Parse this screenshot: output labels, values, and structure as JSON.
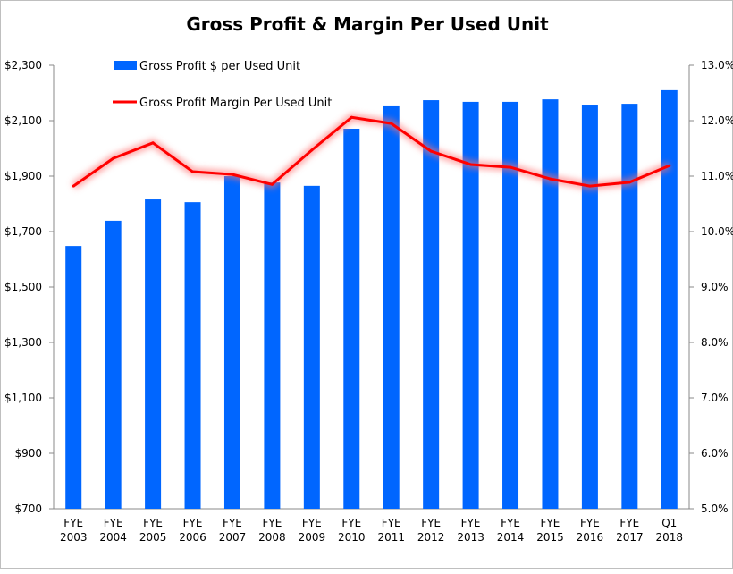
{
  "chart_data": {
    "type": "bar+line",
    "title": "Gross Profit & Margin Per Used Unit",
    "categories": [
      "FYE 2003",
      "FYE 2004",
      "FYE 2005",
      "FYE 2006",
      "FYE 2007",
      "FYE 2008",
      "FYE 2009",
      "FYE 2010",
      "FYE 2011",
      "FYE 2012",
      "FYE 2013",
      "FYE 2014",
      "FYE 2015",
      "FYE 2016",
      "FYE 2017",
      "Q1 2018"
    ],
    "series": [
      {
        "name": "Gross Profit $ per Used Unit",
        "type": "bar",
        "axis": "left",
        "color": "#0066ff",
        "values": [
          1648,
          1739,
          1816,
          1806,
          1900,
          1877,
          1865,
          2071,
          2155,
          2174,
          2168,
          2168,
          2177,
          2158,
          2161,
          2210
        ]
      },
      {
        "name": "Gross Profit Margin Per Used Unit",
        "type": "line",
        "axis": "right",
        "color": "#ff0000",
        "values": [
          10.82,
          11.32,
          11.6,
          11.08,
          11.03,
          10.85,
          11.47,
          12.06,
          11.95,
          11.45,
          11.21,
          11.16,
          10.95,
          10.82,
          10.89,
          11.19
        ]
      }
    ],
    "left_axis": {
      "ylim": [
        700,
        2300
      ],
      "ticks": [
        700,
        900,
        1100,
        1300,
        1500,
        1700,
        1900,
        2100,
        2300
      ],
      "tick_labels": [
        "$700",
        "$900",
        "$1,100",
        "$1,300",
        "$1,500",
        "$1,700",
        "$1,900",
        "$2,100",
        "$2,300"
      ]
    },
    "right_axis": {
      "ylim": [
        5,
        13
      ],
      "ticks": [
        5,
        6,
        7,
        8,
        9,
        10,
        11,
        12,
        13
      ],
      "tick_labels": [
        "5.0%",
        "6.0%",
        "7.0%",
        "8.0%",
        "9.0%",
        "10.0%",
        "11.0%",
        "12.0%",
        "13.0%"
      ]
    },
    "legend_position": "top-left",
    "grid": false
  }
}
